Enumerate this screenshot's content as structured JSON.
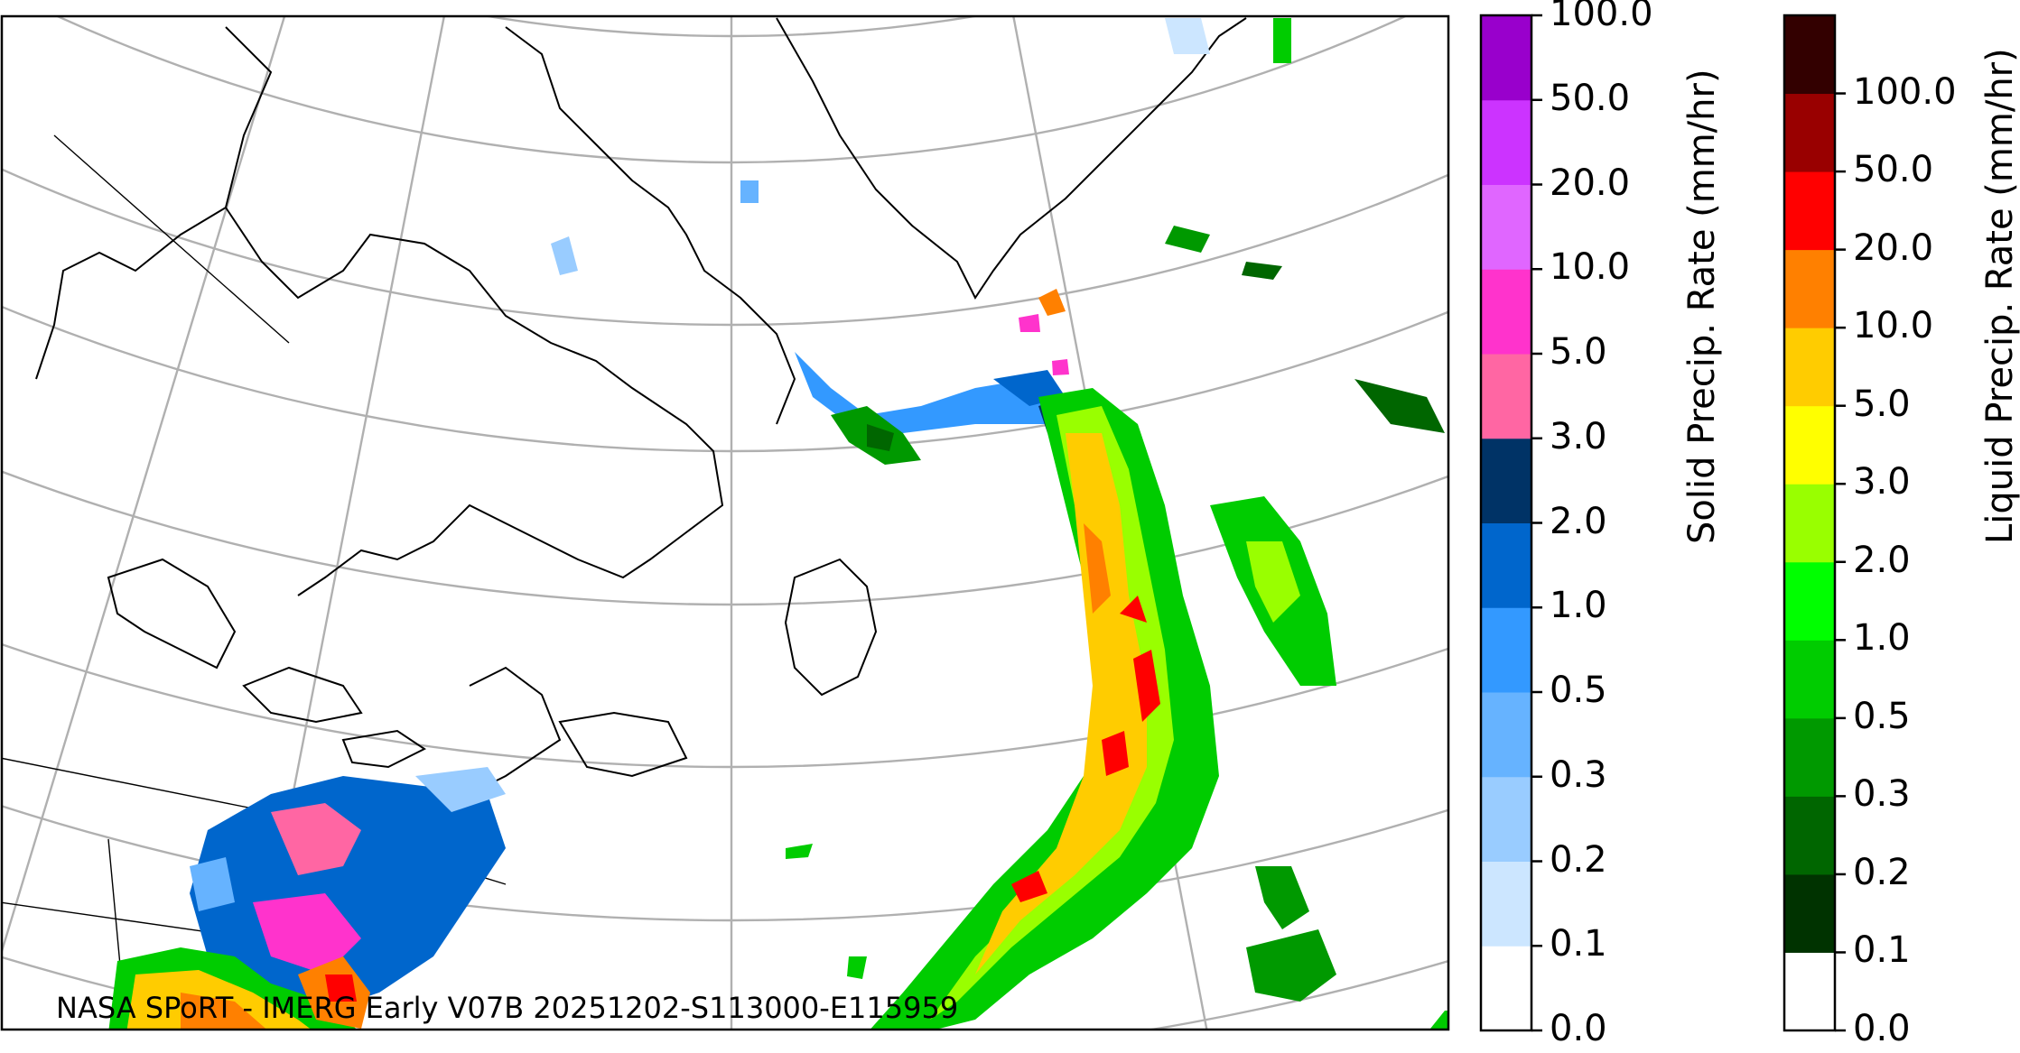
{
  "footer": "NASA SPoRT - IMERG Early V07B 20251202-S113000-E115959",
  "solid_colorbar": {
    "title": "Solid Precip. Rate (mm/hr)",
    "ticks": [
      "0.0",
      "0.1",
      "0.2",
      "0.3",
      "0.5",
      "1.0",
      "2.0",
      "3.0",
      "5.0",
      "10.0",
      "20.0",
      "50.0",
      "100.0"
    ],
    "colors": [
      "#ffffff",
      "#cce6ff",
      "#99ccff",
      "#66b3ff",
      "#3399ff",
      "#0066cc",
      "#003366",
      "#ff66a3",
      "#ff33cc",
      "#e066ff",
      "#cc33ff",
      "#9900cc"
    ]
  },
  "liquid_colorbar": {
    "title": "Liquid Precip. Rate (mm/hr)",
    "ticks": [
      "0.0",
      "0.1",
      "0.2",
      "0.3",
      "0.5",
      "1.0",
      "2.0",
      "3.0",
      "5.0",
      "10.0",
      "20.0",
      "50.0",
      "100.0"
    ],
    "colors": [
      "#ffffff",
      "#003300",
      "#006600",
      "#009900",
      "#00cc00",
      "#00ff00",
      "#99ff00",
      "#ffff00",
      "#ffcc00",
      "#ff8000",
      "#ff0000",
      "#990000",
      "#330000"
    ]
  },
  "map": {
    "projection": "conic",
    "region": "Northeastern North America and northwest Atlantic",
    "gridlines": true
  }
}
